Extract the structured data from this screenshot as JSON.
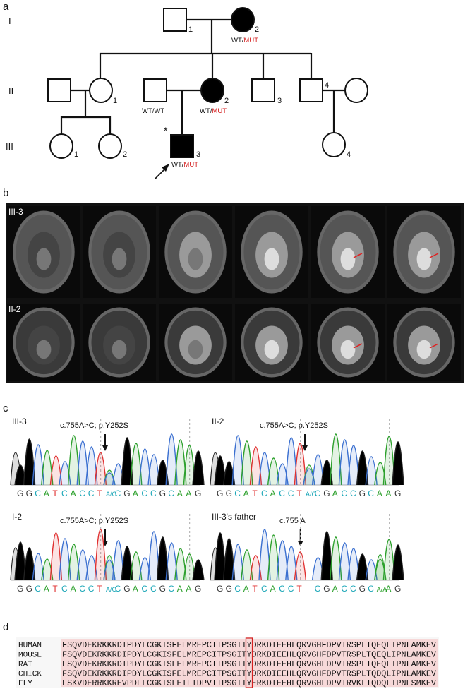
{
  "panel_a": {
    "label": "a",
    "generations": [
      "I",
      "II",
      "III"
    ],
    "I_1": "1",
    "I_2": "2",
    "II_1": "1",
    "II_2": "2",
    "II_3": "3",
    "II_4": "4",
    "III_1": "1",
    "III_2": "2",
    "III_3": "3",
    "III_4": "4",
    "genotype_I_2": [
      "WT/",
      "MUT"
    ],
    "genotype_II_2_partner": "WT/WT",
    "genotype_II_2": [
      "WT/",
      "MUT"
    ],
    "genotype_III_3": [
      "WT/",
      "MUT"
    ],
    "proband_mark": "*"
  },
  "panel_b": {
    "label": "b",
    "rows": [
      "III-3",
      "II-2"
    ]
  },
  "panel_c": {
    "label": "c",
    "traces": [
      {
        "name": "III-3",
        "variant": "c.755A>C; p.Y252S",
        "bases": [
          "G",
          "G",
          "C",
          "A",
          "T",
          "C",
          "A",
          "C",
          "C",
          "T",
          "A/C",
          "C",
          "G",
          "A",
          "C",
          "C",
          "G",
          "C",
          "A",
          "A",
          "G"
        ]
      },
      {
        "name": "II-2",
        "variant": "c.755A>C; p.Y252S",
        "bases": [
          "G",
          "G",
          "C",
          "A",
          "T",
          "C",
          "A",
          "C",
          "C",
          "T",
          "A/C",
          "C",
          "G",
          "A",
          "C",
          "C",
          "G",
          "C",
          "A",
          "A",
          "G"
        ]
      },
      {
        "name": "I-2",
        "variant": "c.755A>C; p.Y252S",
        "bases": [
          "G",
          "G",
          "C",
          "A",
          "T",
          "C",
          "A",
          "C",
          "C",
          "T",
          "A/C",
          "C",
          "G",
          "A",
          "C",
          "C",
          "G",
          "C",
          "A",
          "A",
          "G"
        ]
      },
      {
        "name": "III-3's father",
        "variant": "c.755 A",
        "bases": [
          "G",
          "G",
          "C",
          "A",
          "T",
          "C",
          "A",
          "C",
          "C",
          "T",
          "C",
          "G",
          "A",
          "C",
          "C",
          "G",
          "C",
          "A/A",
          "A",
          "G"
        ]
      }
    ]
  },
  "panel_d": {
    "label": "d",
    "alignment": [
      {
        "species": "HUMAN",
        "sequence": "FSQVDEKRKKRDIPDYLCGKISFELMREPCITPSGITYDRKDIEEHLQRVGHFDPVTRSPLTQEQLIPNLAMKEV"
      },
      {
        "species": "MOUSE",
        "sequence": "FSQVDEKRKKRDIPDYLCGKISFELMREPCITPSGITYDRKDIEEHLQRVGHFDPVTRSPLTQEQLIPNLAMKEV"
      },
      {
        "species": "RAT",
        "sequence": "FSQVDEKRKKRDIPDYLCGKISFELMREPCITPSGITYDRKDIEEHLQRVGHFDPVTRSPLTQEQLIPNLAMKEV"
      },
      {
        "species": "CHICK",
        "sequence": "FSQVDEKRKKRDIPDYLCGKISFELMREPCITPSGITYDRKDIEEHLQRVGHFDPVTRSPLTQDQLIPNLAMKEV"
      },
      {
        "species": "FLY",
        "sequence": "FSKVDERRKKREVPDFLCGKISFEILTDPVITPSGITYERKDIEEHLQRVGHFDPVTRVKLTQDQLIPNFSMKEV"
      }
    ]
  }
}
